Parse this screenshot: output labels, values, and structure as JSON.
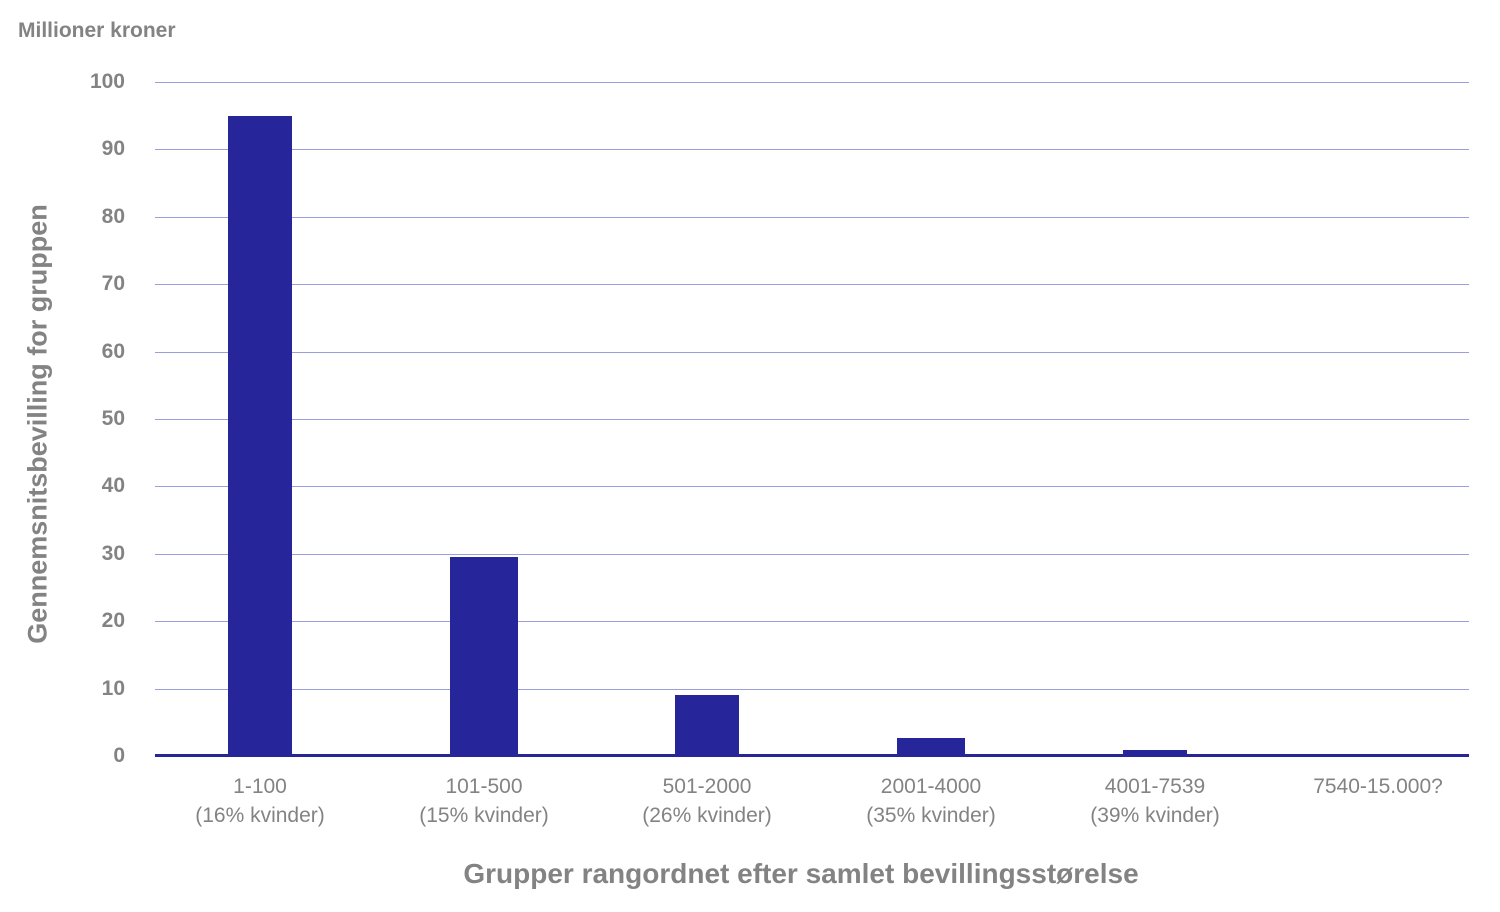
{
  "chart_data": {
    "type": "bar",
    "title": "",
    "unit_label": "Millioner kroner",
    "xlabel": "Grupper rangordnet efter samlet bevillingsstørelse",
    "ylabel": "Gennemsnitsbevilling for gruppen",
    "ylim": [
      0,
      100
    ],
    "yticks": [
      "0",
      "10",
      "20",
      "30",
      "40",
      "50",
      "60",
      "70",
      "80",
      "90",
      "100"
    ],
    "grid": true,
    "legend": null,
    "categories": [
      {
        "range": "1-100",
        "note": "(16% kvinder)"
      },
      {
        "range": "101-500",
        "note": "(15% kvinder)"
      },
      {
        "range": "501-2000",
        "note": "(26% kvinder)"
      },
      {
        "range": "2001-4000",
        "note": "(35% kvinder)"
      },
      {
        "range": "4001-7539",
        "note": "(39% kvinder)"
      },
      {
        "range": "7540-15.000?",
        "note": ""
      }
    ],
    "values": [
      95,
      29.5,
      9.1,
      2.7,
      0.9,
      0
    ],
    "colors": {
      "bar": "#26269a",
      "grid": "#9c9ce0",
      "text": "#838383"
    }
  }
}
